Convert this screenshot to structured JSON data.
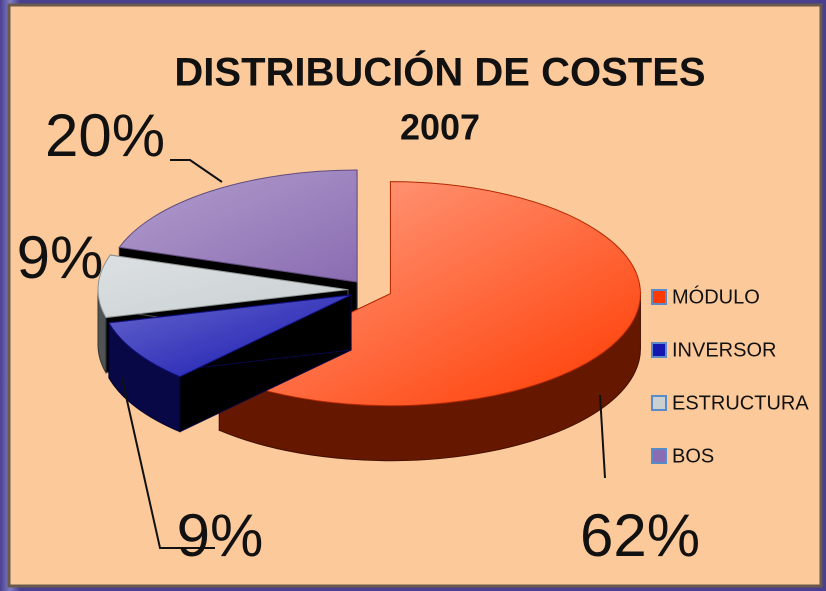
{
  "chart_data": {
    "type": "pie",
    "title": "DISTRIBUCIÓN DE COSTES",
    "subtitle": "2007",
    "categories": [
      "MÓDULO",
      "INVERSOR",
      "ESTRUCTURA",
      "BOS"
    ],
    "values": [
      62,
      9,
      9,
      20
    ],
    "value_labels": [
      "62%",
      "9%",
      "9%",
      "20%"
    ],
    "colors": [
      "#ff3a00",
      "#1515b0",
      "#c9d0d2",
      "#8a6cb2"
    ],
    "legend": "right"
  }
}
